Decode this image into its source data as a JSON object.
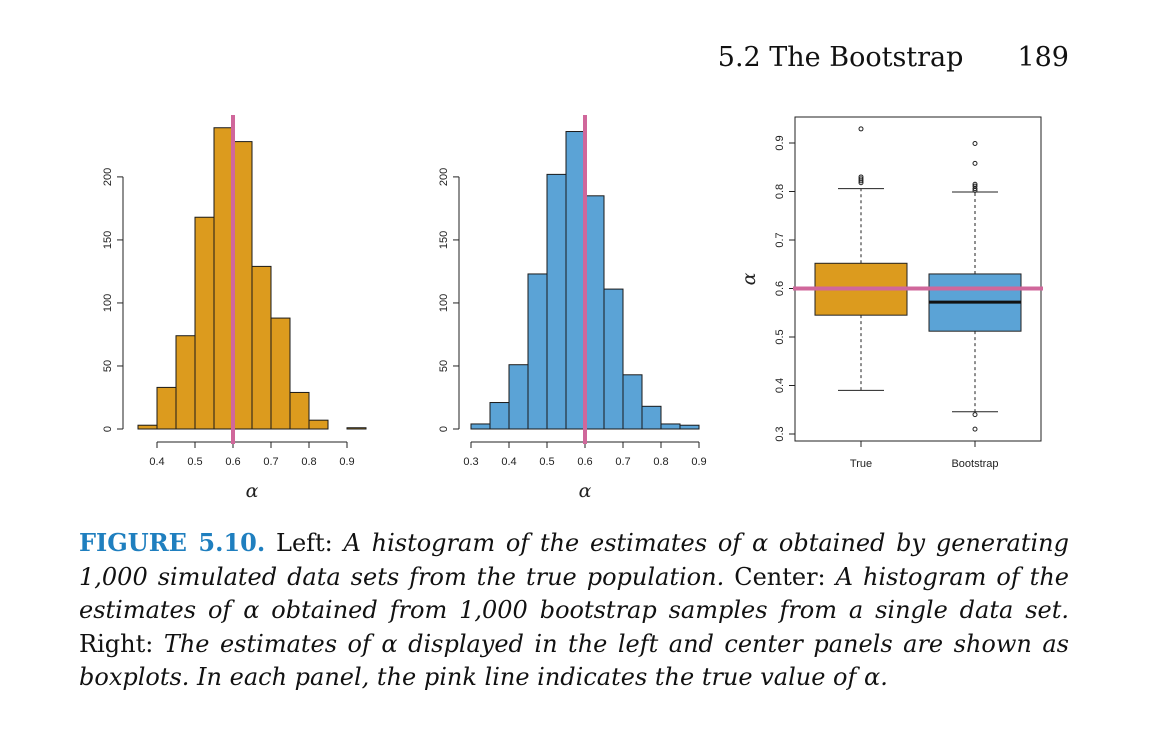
{
  "header": {
    "section": "5.2 The Bootstrap",
    "page": "189"
  },
  "colors": {
    "orange": "#dc9b1e",
    "blue": "#5ba3d6",
    "pink": "#d0679b",
    "axis": "#222222"
  },
  "chart_data": [
    {
      "type": "bar",
      "name": "left-histogram",
      "xlabel": "α",
      "bin_edges": [
        0.35,
        0.4,
        0.45,
        0.5,
        0.55,
        0.6,
        0.65,
        0.7,
        0.75,
        0.8,
        0.85,
        0.9,
        0.95
      ],
      "values": [
        3,
        33,
        74,
        168,
        239,
        228,
        129,
        88,
        29,
        7,
        0,
        1
      ],
      "xticks": [
        "0.4",
        "0.5",
        "0.6",
        "0.7",
        "0.8",
        "0.9"
      ],
      "yticks": [
        "0",
        "50",
        "100",
        "150",
        "200"
      ],
      "ylim": [
        0,
        240
      ],
      "reference_line": 0.6,
      "color": "#dc9b1e"
    },
    {
      "type": "bar",
      "name": "center-histogram",
      "xlabel": "α",
      "bin_edges": [
        0.3,
        0.35,
        0.4,
        0.45,
        0.5,
        0.55,
        0.6,
        0.65,
        0.7,
        0.75,
        0.8,
        0.85,
        0.9
      ],
      "values": [
        4,
        21,
        51,
        123,
        202,
        236,
        185,
        111,
        43,
        18,
        4,
        3
      ],
      "xticks": [
        "0.3",
        "0.4",
        "0.5",
        "0.6",
        "0.7",
        "0.8",
        "0.9"
      ],
      "yticks": [
        "0",
        "50",
        "100",
        "150",
        "200"
      ],
      "ylim": [
        0,
        240
      ],
      "reference_line": 0.6,
      "color": "#5ba3d6"
    },
    {
      "type": "boxplot",
      "name": "right-boxplot",
      "ylabel": "α",
      "categories": [
        "True",
        "Bootstrap"
      ],
      "yticks": [
        "0.3",
        "0.4",
        "0.5",
        "0.6",
        "0.7",
        "0.8",
        "0.9"
      ],
      "ylim": [
        0.29,
        0.95
      ],
      "boxes": [
        {
          "label": "True",
          "q1": 0.545,
          "median": 0.6,
          "q3": 0.652,
          "whisker_low": 0.39,
          "whisker_high": 0.806,
          "outliers": [
            0.818,
            0.822,
            0.826,
            0.83,
            0.929
          ],
          "color": "#dc9b1e"
        },
        {
          "label": "Bootstrap",
          "q1": 0.512,
          "median": 0.572,
          "q3": 0.63,
          "whisker_low": 0.346,
          "whisker_high": 0.799,
          "outliers": [
            0.34,
            0.31,
            0.802,
            0.806,
            0.811,
            0.815,
            0.858,
            0.899
          ],
          "color": "#5ba3d6"
        }
      ],
      "reference_line": 0.6
    }
  ],
  "caption": {
    "label": "FIGURE 5.10.",
    "left_word": "Left:",
    "left_text": "A histogram of the estimates of α obtained by generating 1,000 simulated data sets from the true population.",
    "center_word": "Center:",
    "center_text": "A histogram of the estimates of α obtained from 1,000 bootstrap samples from a single data set.",
    "right_word": "Right:",
    "right_text": "The estimates of α displayed in the left and center panels are shown as boxplots. In each panel, the pink line indicates the true value of α."
  }
}
